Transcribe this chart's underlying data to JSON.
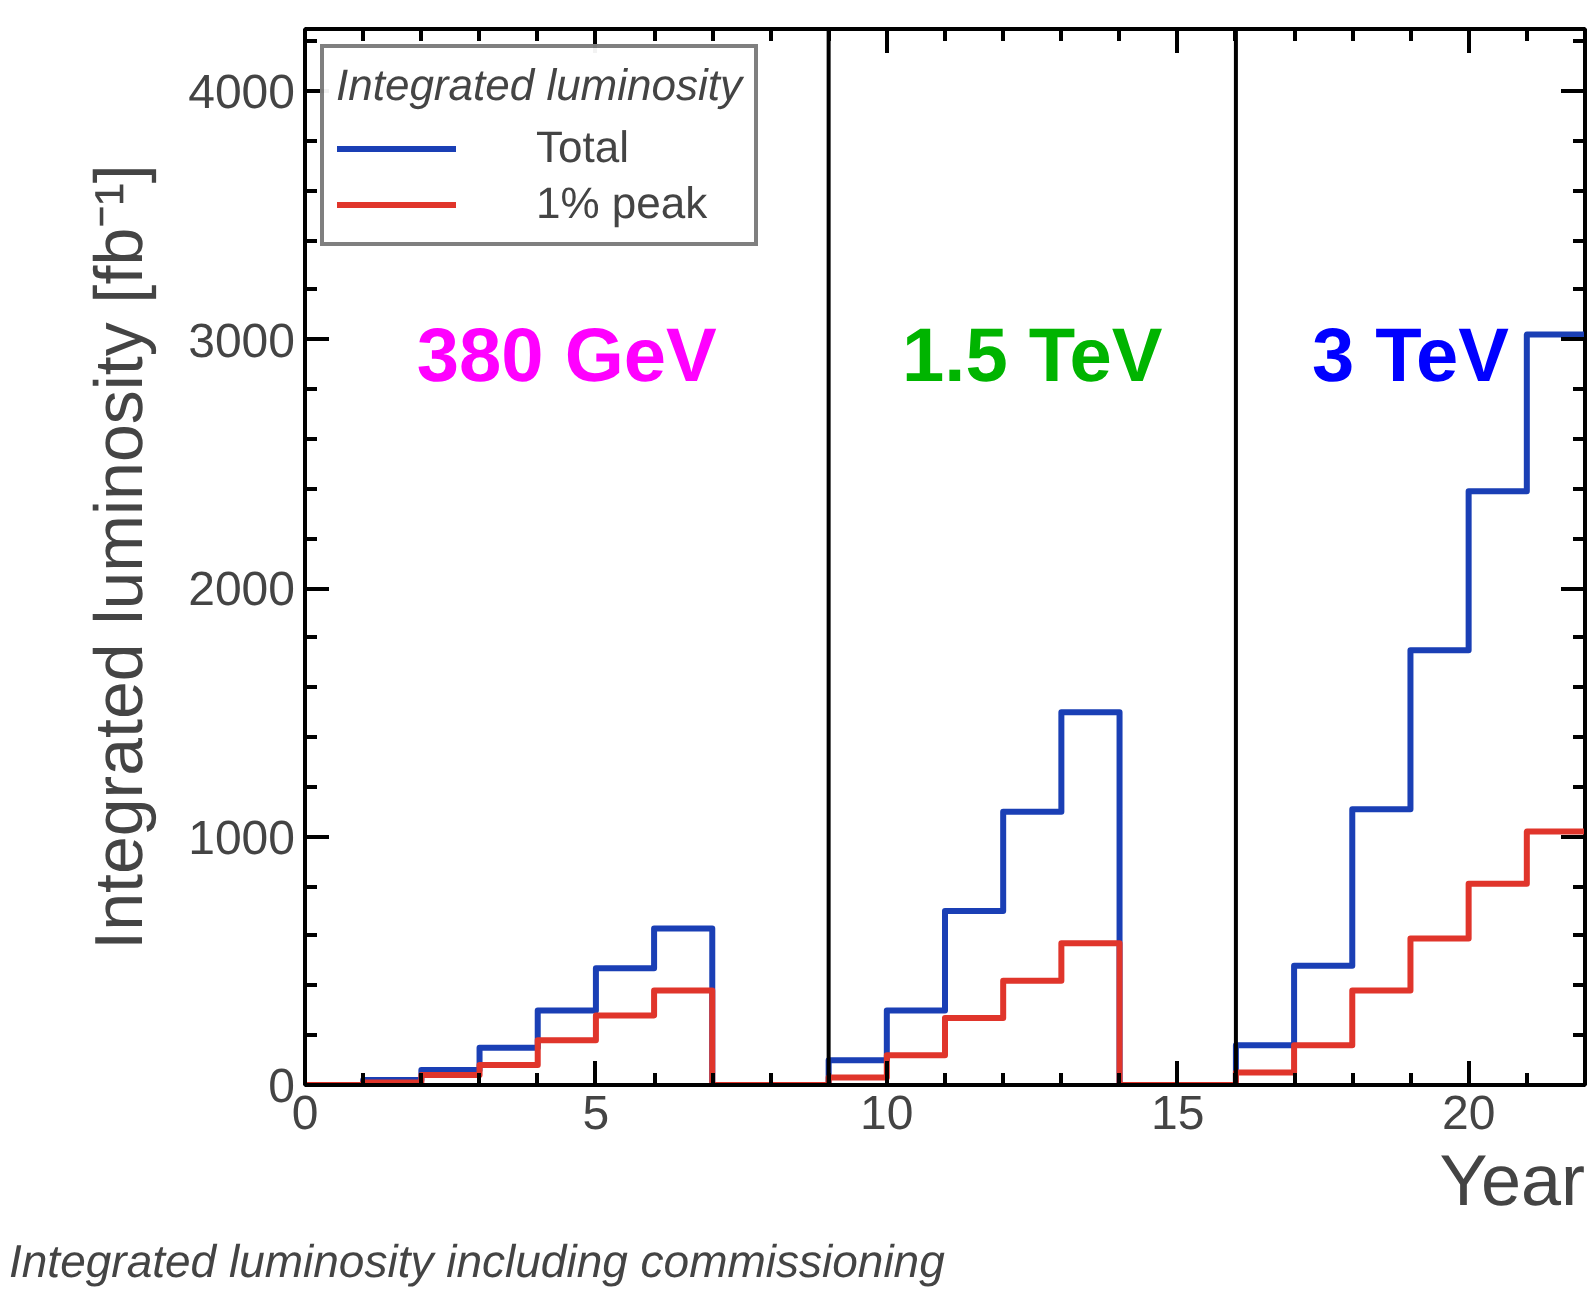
{
  "chart_data": {
    "type": "histogram",
    "xlabel": "Year",
    "ylabel": "Integrated luminosity [fb⁻¹]",
    "legend_title": "Integrated luminosity",
    "bins": [
      0,
      1,
      2,
      3,
      4,
      5,
      6,
      7,
      8,
      9,
      10,
      11,
      12,
      13,
      14,
      15,
      16,
      17,
      18,
      19,
      20,
      21,
      22
    ],
    "series": [
      {
        "name": "Total",
        "color": "#1a3fb5",
        "values": [
          0,
          20,
          60,
          150,
          300,
          470,
          630,
          0,
          0,
          100,
          300,
          700,
          1100,
          1500,
          0,
          0,
          160,
          480,
          1110,
          1750,
          2390,
          3020
        ]
      },
      {
        "name": "1% peak",
        "color": "#e0352b",
        "values": [
          0,
          10,
          40,
          80,
          180,
          280,
          380,
          0,
          0,
          30,
          120,
          270,
          420,
          570,
          0,
          0,
          50,
          160,
          380,
          590,
          810,
          1020
        ]
      }
    ],
    "xlim": [
      0,
      22
    ],
    "ylim": [
      0,
      4250
    ],
    "xticks": [
      0,
      5,
      10,
      15,
      20
    ],
    "yticks": [
      0,
      1000,
      2000,
      3000,
      4000
    ],
    "grid": false,
    "legend": "top left",
    "ref_lines": [
      {
        "axis": "x",
        "value": 9,
        "color": "#000000"
      },
      {
        "axis": "x",
        "value": 16,
        "color": "#000000"
      }
    ],
    "annotations": [
      "380 GeV",
      "1.5 TeV",
      "3 TeV",
      "Integrated luminosity including commissioning"
    ]
  }
}
